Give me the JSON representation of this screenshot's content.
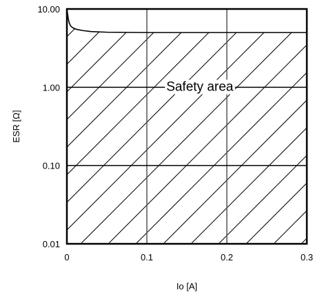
{
  "chart_data": {
    "type": "line",
    "title": "",
    "xlabel": "Io [A]",
    "ylabel": "ESR [Ω]",
    "xlim": [
      0,
      0.3
    ],
    "ylim": [
      0.01,
      10
    ],
    "yscale": "log",
    "x_ticks": [
      0,
      0.1,
      0.2,
      0.3
    ],
    "x_tick_labels": [
      "0",
      "0.1",
      "0.2",
      "0.3"
    ],
    "y_ticks": [
      0.01,
      0.1,
      1,
      10
    ],
    "y_tick_labels": [
      "0.01",
      "0.10",
      "1.00",
      "10.00"
    ],
    "grid": true,
    "legend": "none",
    "series": [
      {
        "x": [
          0.0,
          0.001,
          0.002,
          0.003,
          0.005,
          0.008,
          0.012,
          0.02,
          0.03,
          0.05,
          0.1,
          0.2,
          0.3
        ],
        "y": [
          10,
          8.5,
          7.3,
          6.6,
          6.0,
          5.7,
          5.5,
          5.3,
          5.15,
          5.05,
          5.0,
          5.0,
          5.0
        ],
        "color": "#000000"
      }
    ],
    "hatched_region": {
      "label": "Safety area",
      "bounded_above_by": "series 0",
      "pattern": "diagonal"
    },
    "annotations": [
      {
        "text": "Safety area",
        "x": 0.12,
        "y": 0.9
      }
    ]
  }
}
